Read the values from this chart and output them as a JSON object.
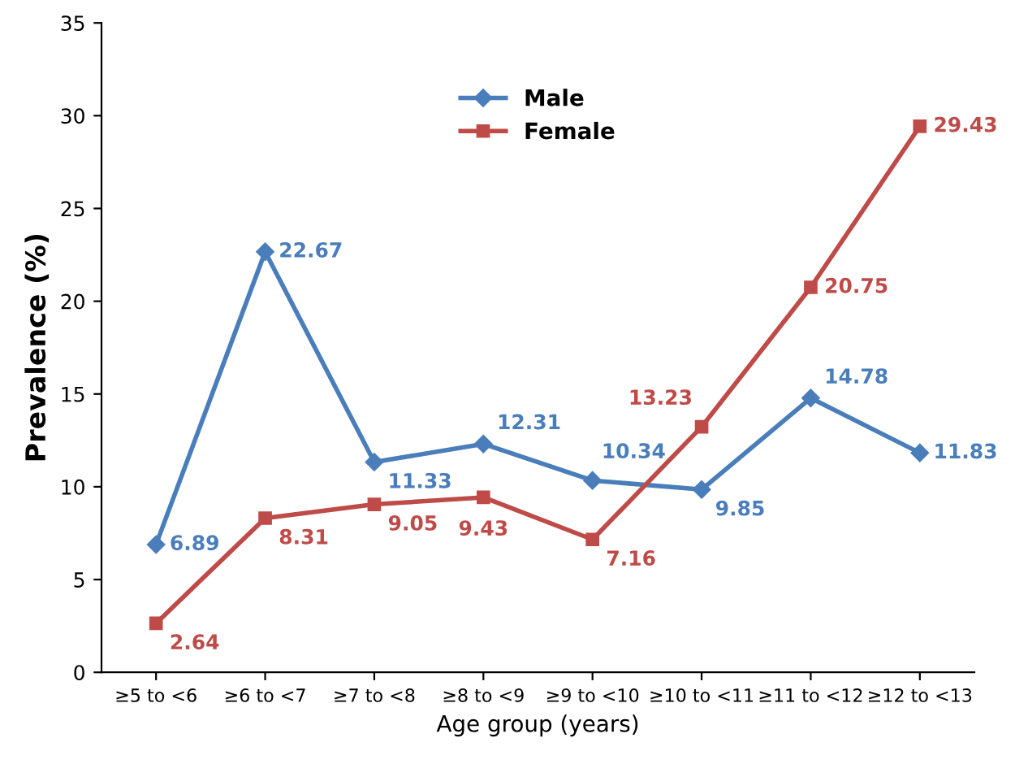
{
  "chart_data": {
    "type": "line",
    "xlabel": "Age group (years)",
    "ylabel": "Prevalence (%)",
    "categories": [
      "≥5 to <6",
      "≥6 to <7",
      "≥7 to <8",
      "≥8 to <9",
      "≥9 to <10",
      "≥10 to <11",
      "≥11 to <12",
      "≥12 to <13"
    ],
    "series": [
      {
        "name": "Male",
        "color": "#4a7ebb",
        "marker": "diamond",
        "values": [
          6.89,
          22.67,
          11.33,
          12.31,
          10.34,
          9.85,
          14.78,
          11.83
        ]
      },
      {
        "name": "Female",
        "color": "#be4b48",
        "marker": "square",
        "values": [
          2.64,
          8.31,
          9.05,
          9.43,
          7.16,
          13.23,
          20.75,
          29.43
        ]
      }
    ],
    "ylim": [
      0,
      35
    ],
    "yticks": [
      0,
      5,
      10,
      15,
      20,
      25,
      30,
      35
    ],
    "grid": false,
    "legend": "top",
    "data_labels": true
  }
}
